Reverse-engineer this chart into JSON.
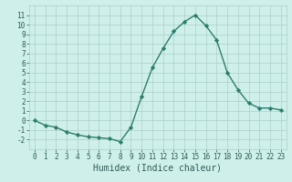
{
  "x": [
    0,
    1,
    2,
    3,
    4,
    5,
    6,
    7,
    8,
    9,
    10,
    11,
    12,
    13,
    14,
    15,
    16,
    17,
    18,
    19,
    20,
    21,
    22,
    23
  ],
  "y": [
    0,
    -0.5,
    -0.7,
    -1.2,
    -1.5,
    -1.7,
    -1.8,
    -1.9,
    -2.2,
    -0.7,
    2.5,
    5.5,
    7.5,
    9.3,
    10.3,
    11.0,
    9.9,
    8.4,
    5.0,
    3.2,
    1.8,
    1.3,
    1.3,
    1.1
  ],
  "line_color": "#2d7d6e",
  "marker": "D",
  "markersize": 2.2,
  "linewidth": 1.0,
  "xlabel": "Humidex (Indice chaleur)",
  "xlabel_fontsize": 7,
  "background_color": "#cff0ea",
  "grid_color": "#aacec8",
  "tick_color": "#2d5a56",
  "label_color": "#2d5a56",
  "ylim": [
    -3,
    12
  ],
  "xlim": [
    -0.5,
    23.5
  ],
  "yticks": [
    -2,
    -1,
    0,
    1,
    2,
    3,
    4,
    5,
    6,
    7,
    8,
    9,
    10,
    11
  ],
  "xticks": [
    0,
    1,
    2,
    3,
    4,
    5,
    6,
    7,
    8,
    9,
    10,
    11,
    12,
    13,
    14,
    15,
    16,
    17,
    18,
    19,
    20,
    21,
    22,
    23
  ],
  "tick_fontsize": 5.5
}
